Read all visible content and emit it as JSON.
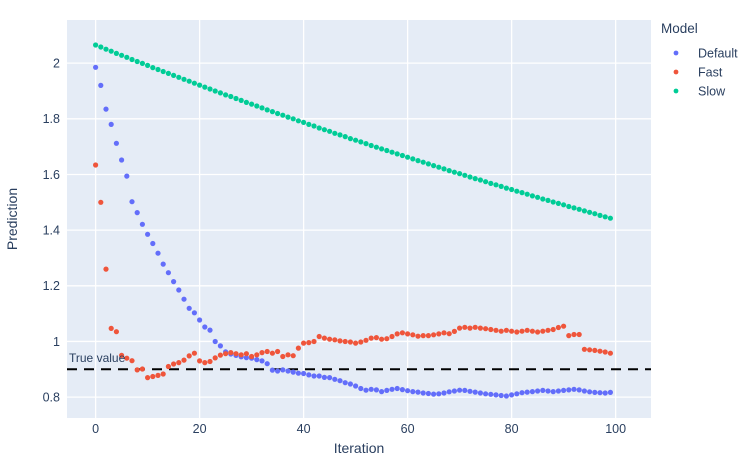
{
  "figure": {
    "plot_bg_color": "#e5ecf6",
    "grid_color": "#ffffff",
    "text_color": "#2a3f5f",
    "reference_line_color": "#000000"
  },
  "chart_data": {
    "type": "scatter",
    "title": "",
    "xlabel": "Iteration",
    "ylabel": "Prediction",
    "xlim": [
      -5.5,
      106.8
    ],
    "ylim": [
      0.725,
      2.155
    ],
    "x_ticks": [
      0,
      20,
      40,
      60,
      80,
      100
    ],
    "y_ticks": [
      0.8,
      1.0,
      1.2,
      1.4,
      1.6,
      1.8,
      2.0
    ],
    "y_tick_labels": [
      "0.8",
      "1",
      "1.2",
      "1.4",
      "1.6",
      "1.8",
      "2"
    ],
    "grid": true,
    "legend_title": "Model",
    "legend_position": "top-right-outside",
    "reference_line": {
      "y": 0.9,
      "style": "dashed",
      "color": "#000000"
    },
    "annotation": {
      "text": "True value",
      "y": 0.9
    },
    "x": [
      0,
      1,
      2,
      3,
      4,
      5,
      6,
      7,
      8,
      9,
      10,
      11,
      12,
      13,
      14,
      15,
      16,
      17,
      18,
      19,
      20,
      21,
      22,
      23,
      24,
      25,
      26,
      27,
      28,
      29,
      30,
      31,
      32,
      33,
      34,
      35,
      36,
      37,
      38,
      39,
      40,
      41,
      42,
      43,
      44,
      45,
      46,
      47,
      48,
      49,
      50,
      51,
      52,
      53,
      54,
      55,
      56,
      57,
      58,
      59,
      60,
      61,
      62,
      63,
      64,
      65,
      66,
      67,
      68,
      69,
      70,
      71,
      72,
      73,
      74,
      75,
      76,
      77,
      78,
      79,
      80,
      81,
      82,
      83,
      84,
      85,
      86,
      87,
      88,
      89,
      90,
      91,
      92,
      93,
      94,
      95,
      96,
      97,
      98,
      99
    ],
    "series": [
      {
        "name": "Default",
        "color": "#636EFA",
        "values": [
          1.985,
          1.92,
          1.835,
          1.78,
          1.712,
          1.652,
          1.594,
          1.502,
          1.463,
          1.421,
          1.385,
          1.352,
          1.317,
          1.278,
          1.247,
          1.215,
          1.185,
          1.152,
          1.119,
          1.103,
          1.077,
          1.052,
          1.041,
          1.0,
          0.984,
          0.963,
          0.955,
          0.95,
          0.945,
          0.942,
          0.94,
          0.935,
          0.93,
          0.92,
          0.897,
          0.894,
          0.898,
          0.894,
          0.89,
          0.886,
          0.885,
          0.88,
          0.876,
          0.876,
          0.871,
          0.87,
          0.864,
          0.859,
          0.852,
          0.847,
          0.84,
          0.831,
          0.825,
          0.828,
          0.826,
          0.82,
          0.824,
          0.828,
          0.831,
          0.827,
          0.823,
          0.82,
          0.818,
          0.815,
          0.813,
          0.811,
          0.812,
          0.815,
          0.819,
          0.822,
          0.825,
          0.824,
          0.821,
          0.818,
          0.815,
          0.812,
          0.81,
          0.808,
          0.806,
          0.804,
          0.808,
          0.812,
          0.816,
          0.818,
          0.82,
          0.822,
          0.824,
          0.822,
          0.82,
          0.822,
          0.824,
          0.826,
          0.828,
          0.826,
          0.822,
          0.819,
          0.817,
          0.816,
          0.815,
          0.817
        ]
      },
      {
        "name": "Fast",
        "color": "#EF553B",
        "values": [
          1.634,
          1.5,
          1.26,
          1.047,
          1.035,
          0.95,
          0.94,
          0.931,
          0.898,
          0.901,
          0.87,
          0.874,
          0.878,
          0.883,
          0.91,
          0.919,
          0.924,
          0.933,
          0.948,
          0.958,
          0.93,
          0.924,
          0.928,
          0.941,
          0.951,
          0.956,
          0.96,
          0.956,
          0.952,
          0.956,
          0.946,
          0.952,
          0.96,
          0.964,
          0.958,
          0.964,
          0.946,
          0.952,
          0.949,
          0.976,
          0.994,
          0.996,
          1.0,
          1.018,
          1.012,
          1.008,
          1.006,
          1.002,
          1.0,
          0.998,
          0.994,
          0.998,
          1.004,
          1.012,
          1.014,
          1.008,
          1.01,
          1.018,
          1.027,
          1.031,
          1.027,
          1.024,
          1.019,
          1.021,
          1.021,
          1.024,
          1.027,
          1.031,
          1.028,
          1.036,
          1.048,
          1.051,
          1.048,
          1.051,
          1.048,
          1.046,
          1.043,
          1.04,
          1.037,
          1.04,
          1.037,
          1.034,
          1.037,
          1.04,
          1.037,
          1.034,
          1.037,
          1.04,
          1.043,
          1.05,
          1.055,
          1.021,
          1.025,
          1.025,
          0.972,
          0.97,
          0.968,
          0.965,
          0.962,
          0.958
        ]
      },
      {
        "name": "Slow",
        "color": "#00CC96",
        "values": [
          2.065,
          2.058,
          2.05,
          2.043,
          2.035,
          2.028,
          2.021,
          2.013,
          2.006,
          1.999,
          1.992,
          1.984,
          1.977,
          1.97,
          1.963,
          1.956,
          1.949,
          1.942,
          1.935,
          1.928,
          1.921,
          1.914,
          1.907,
          1.9,
          1.893,
          1.886,
          1.88,
          1.873,
          1.866,
          1.859,
          1.853,
          1.846,
          1.839,
          1.832,
          1.826,
          1.819,
          1.813,
          1.806,
          1.8,
          1.793,
          1.787,
          1.78,
          1.774,
          1.767,
          1.761,
          1.755,
          1.748,
          1.742,
          1.736,
          1.729,
          1.723,
          1.717,
          1.711,
          1.704,
          1.698,
          1.692,
          1.686,
          1.68,
          1.674,
          1.668,
          1.662,
          1.656,
          1.65,
          1.644,
          1.638,
          1.632,
          1.626,
          1.62,
          1.614,
          1.608,
          1.603,
          1.597,
          1.591,
          1.585,
          1.58,
          1.574,
          1.568,
          1.563,
          1.557,
          1.551,
          1.546,
          1.54,
          1.535,
          1.529,
          1.523,
          1.518,
          1.512,
          1.507,
          1.501,
          1.496,
          1.491,
          1.485,
          1.48,
          1.475,
          1.469,
          1.464,
          1.459,
          1.453,
          1.448,
          1.443
        ]
      }
    ]
  }
}
